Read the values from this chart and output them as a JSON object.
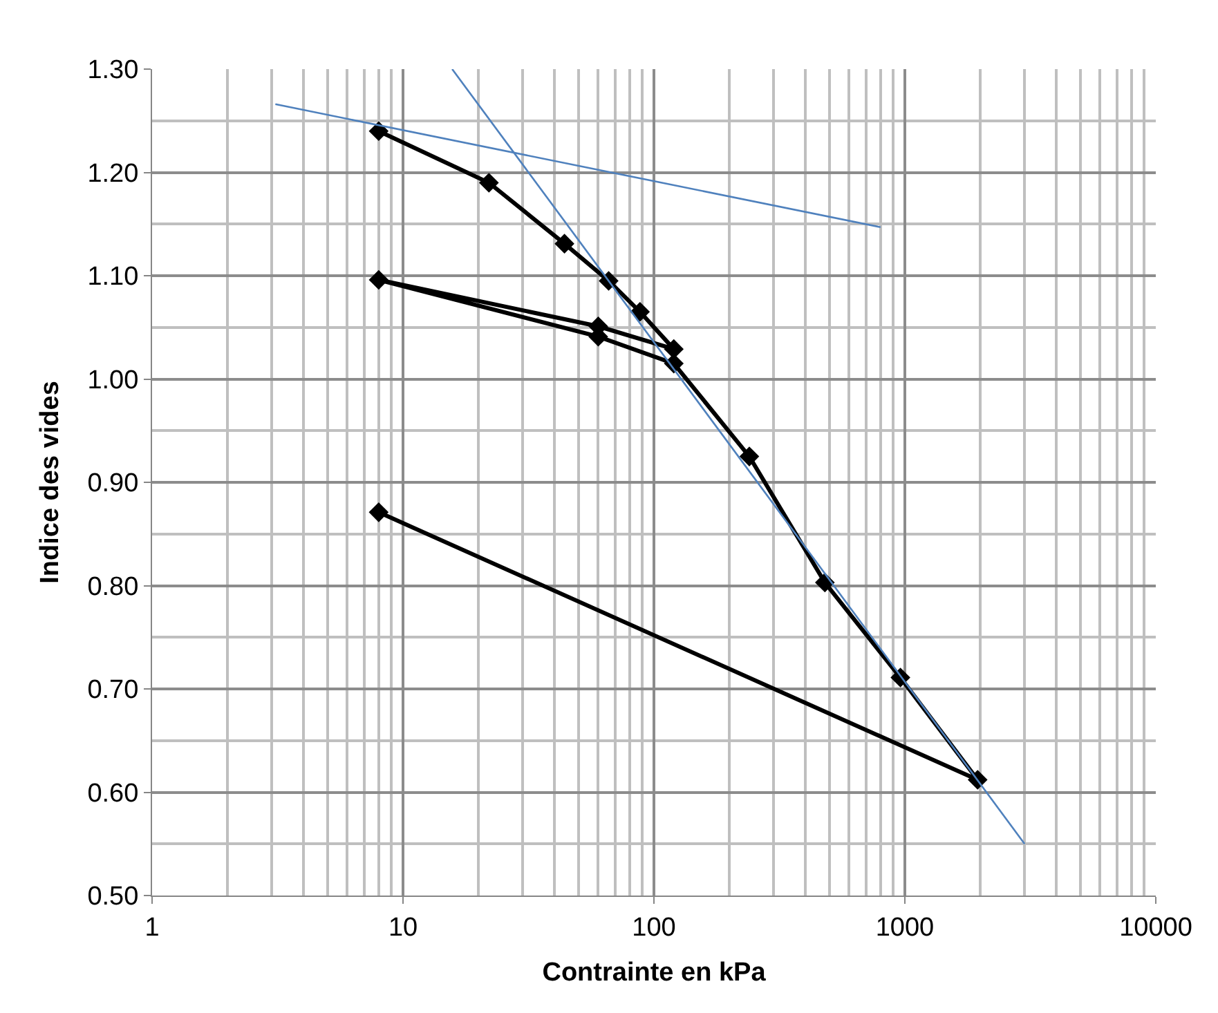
{
  "chart_data": {
    "type": "line",
    "xlabel": "Contrainte en kPa",
    "ylabel": "Indice des vides",
    "log": "x",
    "xlim": [
      1,
      10000
    ],
    "xticks": [
      1,
      10,
      100,
      1000,
      10000
    ],
    "ylim": [
      0.5,
      1.3
    ],
    "yticks": [
      {
        "value": 0.5,
        "label": "0.50"
      },
      {
        "value": 0.6,
        "label": "0.60"
      },
      {
        "value": 0.7,
        "label": "0.70"
      },
      {
        "value": 0.8,
        "label": "0.80"
      },
      {
        "value": 0.9,
        "label": "0.90"
      },
      {
        "value": 1.0,
        "label": "1.00"
      },
      {
        "value": 1.1,
        "label": "1.10"
      },
      {
        "value": 1.2,
        "label": "1.20"
      },
      {
        "value": 1.3,
        "label": "1.30"
      }
    ],
    "grid": true,
    "series": [
      {
        "color": "#000000",
        "marker": "diamond",
        "line_style": "solid",
        "x": [
          8,
          22,
          44,
          66,
          88,
          120,
          60,
          8,
          60,
          120,
          240,
          480,
          960,
          1950,
          8
        ],
        "values": [
          1.24,
          1.19,
          1.131,
          1.095,
          1.065,
          1.029,
          1.051,
          1.096,
          1.041,
          1.015,
          0.925,
          0.803,
          0.711,
          0.612,
          0.871
        ]
      },
      {
        "color": "#4f81bd",
        "marker": "none",
        "line_style": "solid",
        "x": [
          3.1,
          800
        ],
        "values": [
          1.266,
          1.147
        ]
      },
      {
        "color": "#4f81bd",
        "marker": "none",
        "line_style": "solid",
        "x": [
          15.7,
          3000
        ],
        "values": [
          1.3,
          0.55
        ]
      }
    ]
  }
}
